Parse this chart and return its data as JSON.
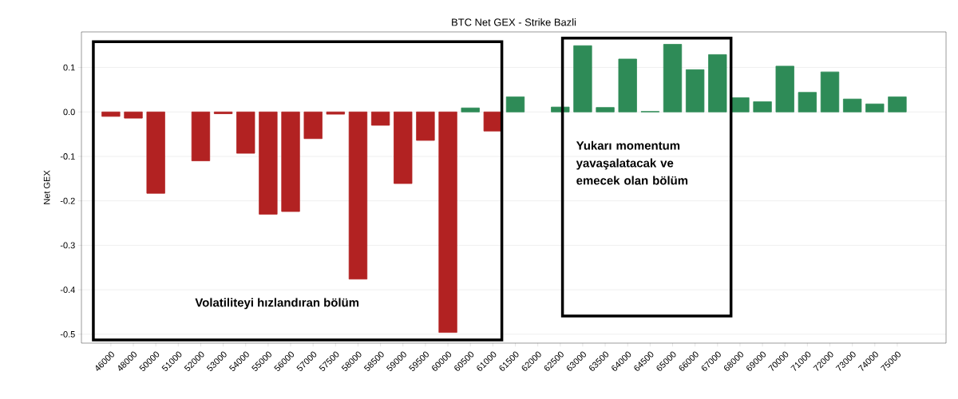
{
  "chart_data": {
    "type": "bar",
    "title": "BTC Net GEX - Strike Bazli",
    "ylabel": "Net GEX",
    "categories": [
      "46000",
      "48000",
      "50000",
      "51000",
      "52000",
      "53000",
      "54000",
      "55000",
      "56000",
      "57000",
      "57500",
      "58000",
      "58500",
      "59000",
      "59500",
      "60000",
      "60500",
      "61000",
      "61500",
      "62000",
      "62500",
      "63000",
      "63500",
      "64000",
      "64500",
      "65000",
      "66000",
      "67000",
      "68000",
      "69000",
      "70000",
      "71000",
      "72000",
      "73000",
      "74000",
      "75000"
    ],
    "values": [
      -0.01,
      -0.014,
      -0.183,
      0,
      -0.11,
      -0.004,
      -0.093,
      -0.23,
      -0.224,
      -0.06,
      -0.005,
      -0.376,
      -0.03,
      -0.161,
      -0.064,
      -0.496,
      0.009,
      -0.043,
      0.034,
      0,
      0.011,
      0.149,
      0.01,
      0.119,
      0.001,
      0.152,
      0.095,
      0.129,
      0.032,
      0.023,
      0.103,
      0.044,
      0.09,
      0.029,
      0.018,
      0.034
    ],
    "colors": [
      "#b22222",
      "#b22222",
      "#b22222",
      "#b22222",
      "#b22222",
      "#b22222",
      "#b22222",
      "#b22222",
      "#b22222",
      "#b22222",
      "#b22222",
      "#b22222",
      "#b22222",
      "#b22222",
      "#b22222",
      "#b22222",
      "#2e8b57",
      "#b22222",
      "#2e8b57",
      "#2e8b57",
      "#2e8b57",
      "#2e8b57",
      "#2e8b57",
      "#2e8b57",
      "#2e8b57",
      "#2e8b57",
      "#2e8b57",
      "#2e8b57",
      "#2e8b57",
      "#2e8b57",
      "#2e8b57",
      "#2e8b57",
      "#2e8b57",
      "#2e8b57",
      "#2e8b57",
      "#2e8b57"
    ],
    "ylim": [
      -0.52,
      0.18
    ],
    "yticks": [
      -0.5,
      -0.4,
      -0.3,
      -0.2,
      -0.1,
      {
        "value": 0,
        "label": "0.0"
      },
      0.1
    ],
    "grid": "y",
    "annotations": [
      "Volatiliteyi hızlandıran bölüm",
      "Yukarı momentum yavaşalatacak ve emecek olan bölüm"
    ]
  }
}
